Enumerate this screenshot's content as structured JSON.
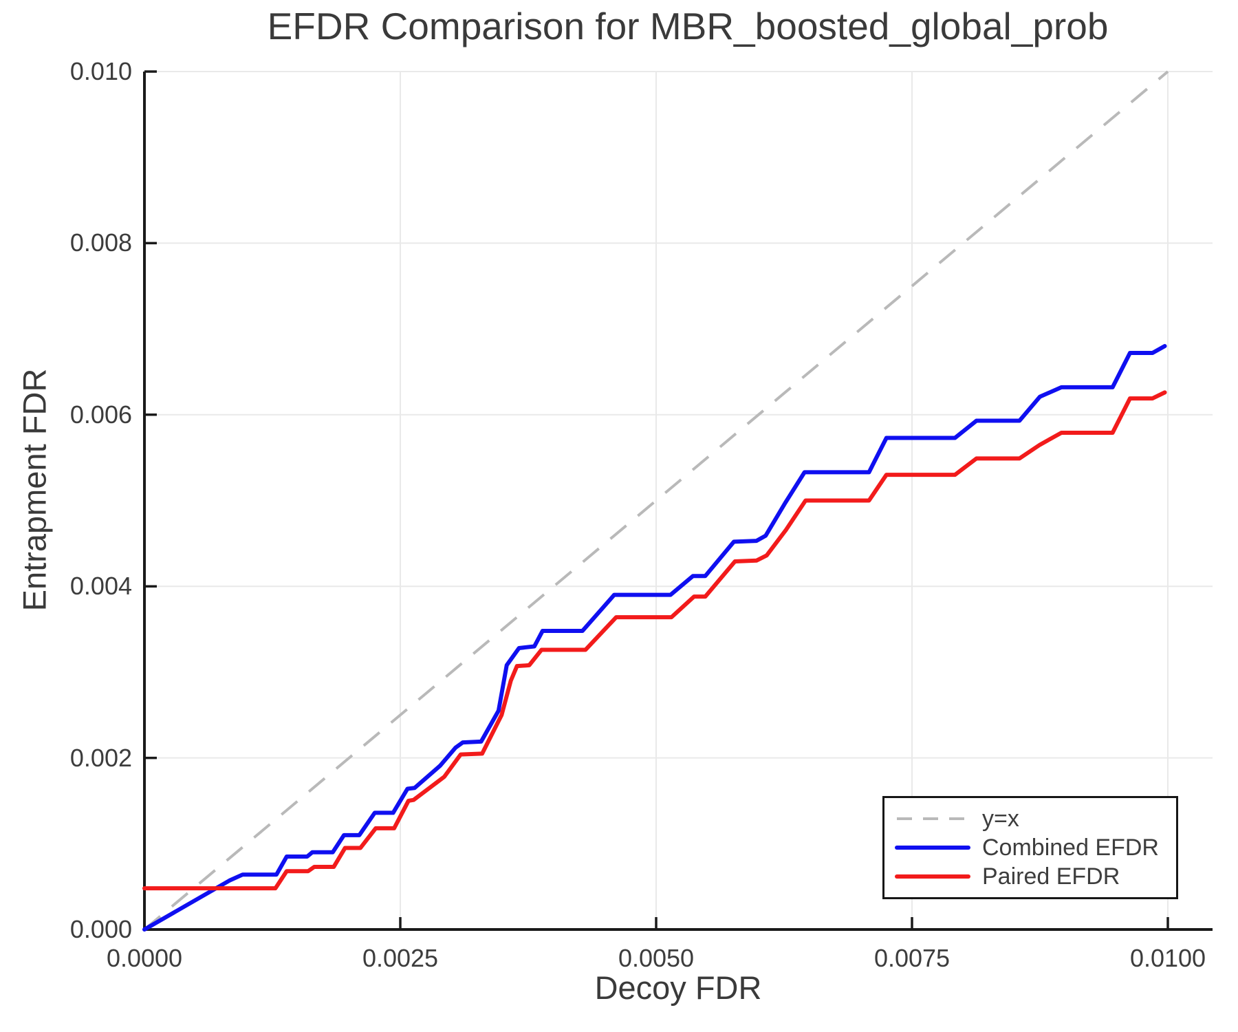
{
  "colors": {
    "combined_efdr": "#0f0ff0",
    "paired_efdr": "#f21b1b",
    "identity": "#b9b9b9",
    "grid": "#e9e9e9",
    "axis": "#1a1a1a",
    "text": "#3c3c3c"
  },
  "chart_data": {
    "type": "line",
    "title": "EFDR Comparison for MBR_boosted_global_prob",
    "xlabel": "Decoy FDR",
    "ylabel": "Entrapment FDR",
    "xlim": [
      0.0,
      0.01
    ],
    "ylim": [
      0.0,
      0.01
    ],
    "grid": true,
    "x_ticks": [
      {
        "value": 0.0,
        "label": "0.0000"
      },
      {
        "value": 0.0025,
        "label": "0.0025"
      },
      {
        "value": 0.005,
        "label": "0.0050"
      },
      {
        "value": 0.0075,
        "label": "0.0075"
      },
      {
        "value": 0.01,
        "label": "0.0100"
      }
    ],
    "y_ticks": [
      {
        "value": 0.0,
        "label": "0.000"
      },
      {
        "value": 0.002,
        "label": "0.002"
      },
      {
        "value": 0.004,
        "label": "0.004"
      },
      {
        "value": 0.006,
        "label": "0.006"
      },
      {
        "value": 0.008,
        "label": "0.008"
      },
      {
        "value": 0.01,
        "label": "0.010"
      }
    ],
    "legend": {
      "position": "bottom-right",
      "entries": [
        {
          "label": "y=x",
          "color": "#b9b9b9",
          "style": "dashed"
        },
        {
          "label": "Combined EFDR",
          "color": "#0f0ff0",
          "style": "solid"
        },
        {
          "label": "Paired EFDR",
          "color": "#f21b1b",
          "style": "solid"
        }
      ]
    },
    "identity_line": {
      "name": "y=x",
      "points": [
        [
          0.0,
          0.0
        ],
        [
          0.01,
          0.01
        ]
      ]
    },
    "series": [
      {
        "name": "Combined EFDR",
        "color": "#0f0ff0",
        "points": [
          [
            0.0,
            0.0
          ],
          [
            0.00083,
            0.00057
          ],
          [
            0.00096,
            0.00064
          ],
          [
            0.00129,
            0.00064
          ],
          [
            0.00139,
            0.00085
          ],
          [
            0.00159,
            0.00085
          ],
          [
            0.00164,
            0.0009
          ],
          [
            0.00184,
            0.0009
          ],
          [
            0.00195,
            0.0011
          ],
          [
            0.0021,
            0.0011
          ],
          [
            0.00225,
            0.00136
          ],
          [
            0.00243,
            0.00136
          ],
          [
            0.00257,
            0.00164
          ],
          [
            0.00264,
            0.00165
          ],
          [
            0.00289,
            0.00191
          ],
          [
            0.00304,
            0.00212
          ],
          [
            0.00311,
            0.00218
          ],
          [
            0.00329,
            0.00219
          ],
          [
            0.00346,
            0.00255
          ],
          [
            0.00354,
            0.00308
          ],
          [
            0.00366,
            0.00328
          ],
          [
            0.00381,
            0.0033
          ],
          [
            0.00389,
            0.00348
          ],
          [
            0.00428,
            0.00348
          ],
          [
            0.00459,
            0.0039
          ],
          [
            0.00514,
            0.0039
          ],
          [
            0.00536,
            0.00412
          ],
          [
            0.00548,
            0.00412
          ],
          [
            0.00576,
            0.00452
          ],
          [
            0.00598,
            0.00453
          ],
          [
            0.00607,
            0.00459
          ],
          [
            0.00626,
            0.00497
          ],
          [
            0.00645,
            0.00533
          ],
          [
            0.00708,
            0.00533
          ],
          [
            0.00725,
            0.00573
          ],
          [
            0.00792,
            0.00573
          ],
          [
            0.00813,
            0.00593
          ],
          [
            0.00855,
            0.00593
          ],
          [
            0.00875,
            0.00621
          ],
          [
            0.00896,
            0.00632
          ],
          [
            0.00946,
            0.00632
          ],
          [
            0.00963,
            0.00672
          ],
          [
            0.00985,
            0.00672
          ],
          [
            0.00997,
            0.0068
          ]
        ]
      },
      {
        "name": "Paired EFDR",
        "color": "#f21b1b",
        "points": [
          [
            0.0,
            0.00048
          ],
          [
            0.00128,
            0.00048
          ],
          [
            0.00139,
            0.00068
          ],
          [
            0.0016,
            0.00068
          ],
          [
            0.00166,
            0.00073
          ],
          [
            0.00185,
            0.00073
          ],
          [
            0.00196,
            0.00095
          ],
          [
            0.00211,
            0.00095
          ],
          [
            0.00226,
            0.00118
          ],
          [
            0.00244,
            0.00118
          ],
          [
            0.00258,
            0.0015
          ],
          [
            0.00263,
            0.00151
          ],
          [
            0.00293,
            0.00178
          ],
          [
            0.00309,
            0.00204
          ],
          [
            0.0033,
            0.00205
          ],
          [
            0.00349,
            0.0025
          ],
          [
            0.00358,
            0.0029
          ],
          [
            0.00364,
            0.00307
          ],
          [
            0.00376,
            0.00308
          ],
          [
            0.00388,
            0.00326
          ],
          [
            0.00431,
            0.00326
          ],
          [
            0.00461,
            0.00364
          ],
          [
            0.00515,
            0.00364
          ],
          [
            0.00537,
            0.00388
          ],
          [
            0.00548,
            0.00388
          ],
          [
            0.00577,
            0.00429
          ],
          [
            0.00598,
            0.0043
          ],
          [
            0.00608,
            0.00436
          ],
          [
            0.00627,
            0.00466
          ],
          [
            0.00646,
            0.005
          ],
          [
            0.00708,
            0.005
          ],
          [
            0.00725,
            0.0053
          ],
          [
            0.00792,
            0.0053
          ],
          [
            0.00813,
            0.00549
          ],
          [
            0.00855,
            0.00549
          ],
          [
            0.00875,
            0.00565
          ],
          [
            0.00896,
            0.00579
          ],
          [
            0.00946,
            0.00579
          ],
          [
            0.00963,
            0.00619
          ],
          [
            0.00985,
            0.00619
          ],
          [
            0.00997,
            0.00626
          ]
        ]
      }
    ]
  }
}
